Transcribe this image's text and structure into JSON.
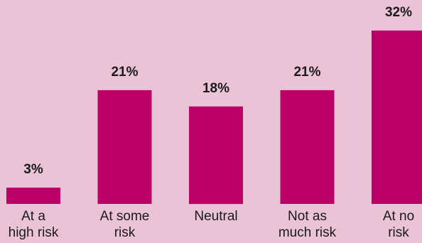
{
  "chart_data": {
    "type": "bar",
    "title": "",
    "xlabel": "",
    "ylabel": "",
    "categories": [
      [
        "At a",
        "high risk"
      ],
      [
        "At some",
        "risk"
      ],
      [
        "Neutral"
      ],
      [
        "Not as",
        "much risk"
      ],
      [
        "At no",
        "risk"
      ]
    ],
    "values": [
      3,
      21,
      18,
      21,
      32
    ],
    "value_labels": [
      "3%",
      "21%",
      "18%",
      "21%",
      "32%"
    ],
    "ylim": [
      0,
      32
    ],
    "grid": false,
    "legend": "none",
    "bar_color": "#bb0068",
    "background_color": "#ebc3d7"
  }
}
